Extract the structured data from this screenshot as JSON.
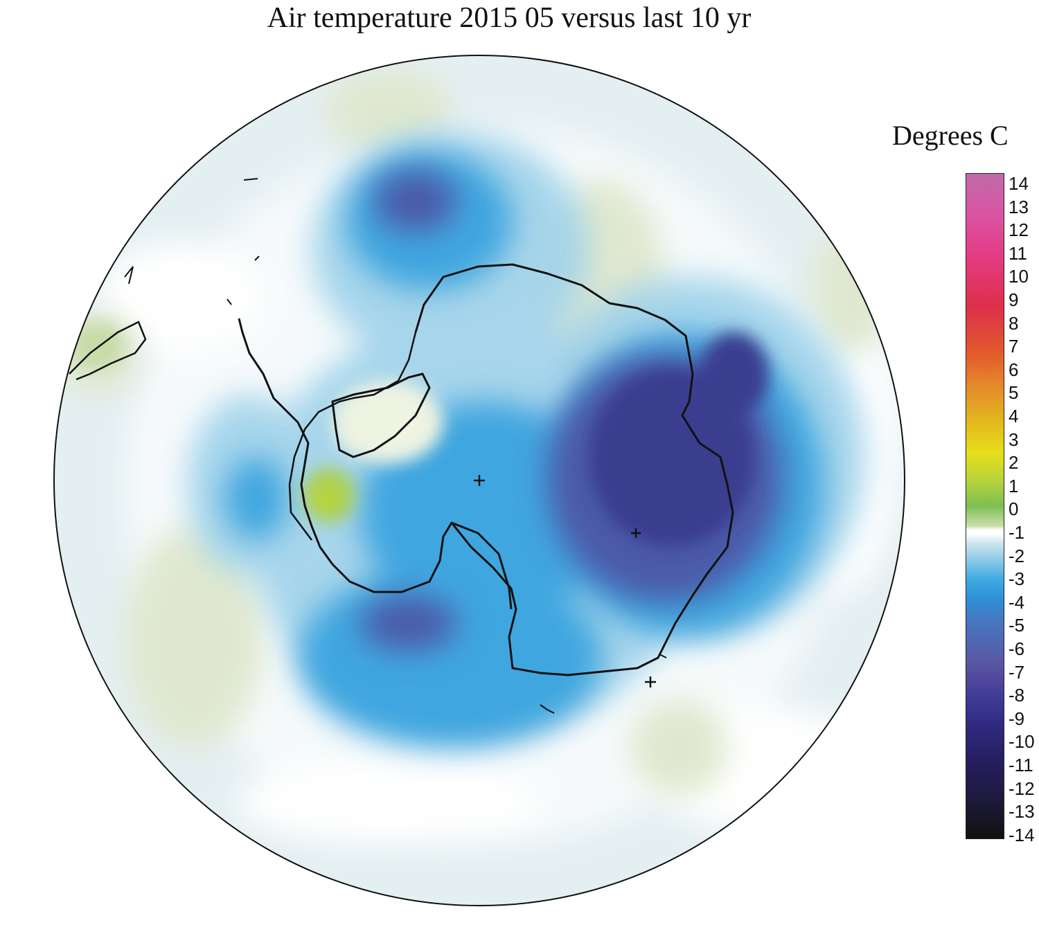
{
  "title": "Air temperature 2015 05 versus last 10 yr",
  "colorbar": {
    "units_label": "Degrees C",
    "tick_labels": [
      "14",
      "13",
      "12",
      "11",
      "10",
      "9",
      "8",
      "7",
      "6",
      "5",
      "4",
      "3",
      "2",
      "1",
      "0",
      "-1",
      "-2",
      "-3",
      "-4",
      "-5",
      "-6",
      "-7",
      "-8",
      "-9",
      "-10",
      "-11",
      "-12",
      "-13",
      "-14"
    ],
    "range": [
      -14,
      14
    ],
    "colors": {
      "warm_max": "#c06aa8",
      "red": "#dd2f4a",
      "orange": "#e48a2a",
      "yellow": "#e7df1a",
      "green": "#7fbd54",
      "zero": "#ffffff",
      "light_blue": "#8fcbe8",
      "blue": "#40abe2",
      "indigo": "#3d3b95",
      "cold_min": "#111111"
    }
  },
  "map": {
    "projection": "south polar stereographic",
    "region": "Antarctica and Southern Ocean",
    "feature": "May 2015 air temperature anomaly; strong cold anomaly over East Antarctica, warm anomaly near Antarctic Peninsula"
  }
}
